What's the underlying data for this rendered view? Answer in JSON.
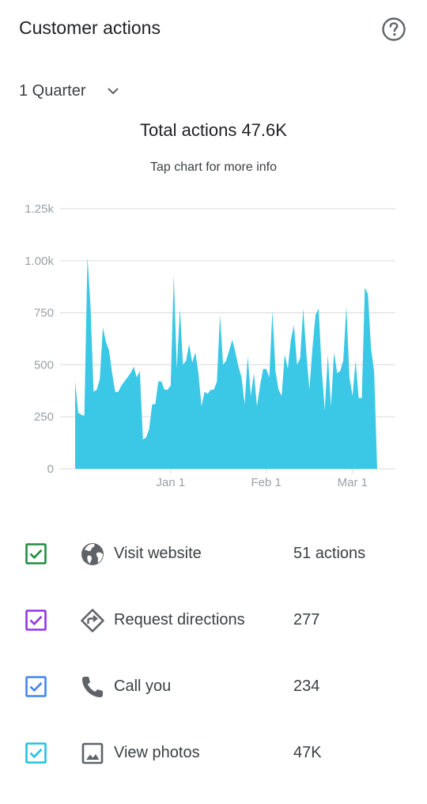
{
  "header": {
    "title": "Customer actions",
    "help_icon": "help-circle-icon"
  },
  "period": {
    "selected": "1 Quarter",
    "icon": "chevron-down-icon"
  },
  "summary": {
    "total": "Total actions 47.6K",
    "hint": "Tap chart for more info"
  },
  "colors": {
    "area": "#3ac8e6",
    "grid": "#e0e0e0",
    "axis_text": "#9aa0a6",
    "visit_website": "#1e8e3e",
    "request_directions": "#9334e6",
    "call_you": "#4285f4",
    "view_photos": "#24c1e0",
    "icon_gray": "#5f6368"
  },
  "chart_data": {
    "type": "area",
    "title": "",
    "xlabel": "",
    "ylabel": "",
    "ylim": [
      0,
      1250
    ],
    "yticks": [
      0,
      250,
      500,
      750,
      1000,
      1250
    ],
    "ytick_labels": [
      "0",
      "250",
      "500",
      "750",
      "1.00k",
      "1.25k"
    ],
    "xticks": [
      {
        "label": "Jan 1",
        "day": 31
      },
      {
        "label": "Feb 1",
        "day": 62
      },
      {
        "label": "Mar 1",
        "day": 90
      }
    ],
    "grid": true,
    "series": [
      {
        "values": [
          420,
          270,
          260,
          255,
          1020,
          780,
          370,
          380,
          430,
          680,
          610,
          570,
          460,
          370,
          370,
          400,
          420,
          440,
          460,
          490,
          440,
          470,
          140,
          150,
          190,
          310,
          310,
          420,
          420,
          380,
          380,
          400,
          930,
          480,
          770,
          500,
          520,
          600,
          510,
          560,
          460,
          300,
          370,
          360,
          380,
          380,
          420,
          740,
          500,
          520,
          570,
          620,
          560,
          490,
          440,
          310,
          540,
          350,
          460,
          300,
          400,
          480,
          480,
          440,
          760,
          470,
          380,
          350,
          550,
          480,
          620,
          690,
          500,
          530,
          770,
          560,
          380,
          580,
          740,
          770,
          480,
          280,
          550,
          300,
          560,
          460,
          470,
          520,
          780,
          440,
          350,
          520,
          340,
          340,
          870,
          840,
          580,
          470,
          0
        ]
      }
    ]
  },
  "legend": {
    "items": [
      {
        "label": "Visit website",
        "value": "51 actions",
        "icon": "globe-icon",
        "checked": true
      },
      {
        "label": "Request directions",
        "value": "277",
        "icon": "directions-icon",
        "checked": true
      },
      {
        "label": "Call you",
        "value": "234",
        "icon": "phone-icon",
        "checked": true
      },
      {
        "label": "View photos",
        "value": "47K",
        "icon": "photo-icon",
        "checked": true
      }
    ]
  }
}
